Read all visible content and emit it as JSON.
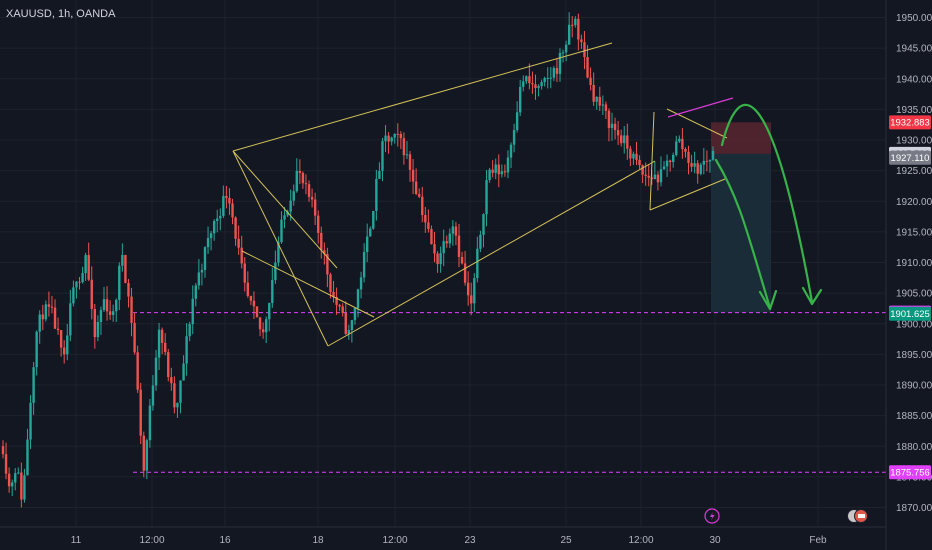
{
  "header": {
    "symbol_label": "XAUUSD, 1h, OANDA"
  },
  "colors": {
    "background": "#131722",
    "grid": "#1e222d",
    "up": "#26a69a",
    "down": "#ef5350",
    "pattern_lines": "#d4c25a",
    "channel_top": "#d63bd6",
    "forecast_arrows": "#37b34a",
    "level_lines": "#e040fb",
    "stop_zone": "#5a2630",
    "target_zone": "#1c2f3a"
  },
  "chart_data": {
    "type": "candlestick",
    "title": "XAUUSD, 1h, OANDA",
    "ylim": [
      1868,
      1953
    ],
    "y_ticks": [
      1870,
      1875,
      1880,
      1885,
      1890,
      1895,
      1900,
      1905,
      1910,
      1915,
      1920,
      1925,
      1930,
      1935,
      1940,
      1945,
      1950
    ],
    "y_tick_labels": [
      "1870.000",
      "1875.000",
      "1880.000",
      "1885.000",
      "1890.000",
      "1895.000",
      "1900.000",
      "1905.000",
      "1910.000",
      "1915.000",
      "1920.000",
      "1925.000",
      "1930.000",
      "1935.000",
      "1940.000",
      "1945.000",
      "1950.000"
    ],
    "x_ticks": [
      "11",
      "12:00",
      "16",
      "18",
      "12:00",
      "23",
      "25",
      "12:00",
      "30",
      "Feb"
    ],
    "bar_count": 233,
    "price_path": [
      [
        0,
        1880
      ],
      [
        15,
        1873
      ],
      [
        30,
        1877
      ],
      [
        45,
        1871
      ],
      [
        57,
        1882
      ],
      [
        75,
        1898
      ],
      [
        92,
        1902
      ],
      [
        110,
        1902
      ],
      [
        124,
        1899
      ],
      [
        140,
        1893
      ],
      [
        155,
        1902
      ],
      [
        172,
        1909
      ],
      [
        180,
        1907
      ],
      [
        192,
        1912
      ],
      [
        210,
        1897
      ],
      [
        232,
        1904
      ],
      [
        255,
        1901
      ],
      [
        275,
        1912
      ],
      [
        300,
        1899
      ],
      [
        325,
        1876
      ],
      [
        360,
        1900
      ],
      [
        400,
        1885
      ],
      [
        440,
        1905
      ],
      [
        480,
        1915
      ],
      [
        520,
        1922
      ],
      [
        560,
        1905
      ],
      [
        600,
        1898
      ],
      [
        640,
        1915
      ],
      [
        680,
        1925
      ],
      [
        720,
        1918
      ],
      [
        760,
        1905
      ],
      [
        800,
        1898
      ],
      [
        840,
        1913
      ],
      [
        880,
        1930
      ],
      [
        920,
        1930
      ],
      [
        960,
        1921
      ],
      [
        1000,
        1910
      ],
      [
        1040,
        1917
      ],
      [
        1080,
        1902
      ],
      [
        1120,
        1925
      ],
      [
        1160,
        1925
      ],
      [
        1200,
        1940
      ],
      [
        1240,
        1938
      ],
      [
        1280,
        1942
      ],
      [
        1320,
        1950
      ],
      [
        1360,
        1938
      ],
      [
        1400,
        1933
      ],
      [
        1440,
        1929
      ],
      [
        1480,
        1924
      ],
      [
        1520,
        1924
      ],
      [
        1560,
        1930
      ],
      [
        1600,
        1925
      ],
      [
        1640,
        1927.73
      ]
    ],
    "levels": [
      {
        "price": 1901.815,
        "label": "1901.815",
        "color": "#e040fb"
      },
      {
        "price": 1875.756,
        "label": "1875.756",
        "color": "#e040fb"
      }
    ],
    "price_badges": [
      {
        "price": 1932.883,
        "label": "1932.883",
        "bg": "#f23645",
        "fg": "#ffffff"
      },
      {
        "price": 1927.73,
        "label": "1927.730",
        "bg": "#d1d4dc",
        "fg": "#131722"
      },
      {
        "price": 1927.11,
        "label": "1927.110",
        "bg": "#787b86",
        "fg": "#ffffff"
      },
      {
        "price": 1901.815,
        "label": "1901.815",
        "bg": "#e040fb",
        "fg": "#ffffff"
      },
      {
        "price": 1901.625,
        "label": "1901.625",
        "bg": "#089981",
        "fg": "#ffffff"
      },
      {
        "price": 1875.756,
        "label": "1875.756",
        "bg": "#e040fb",
        "fg": "#ffffff"
      }
    ],
    "trade_box": {
      "entry": 1927.73,
      "stop": 1932.883,
      "target": 1901.815
    },
    "grid": true
  }
}
